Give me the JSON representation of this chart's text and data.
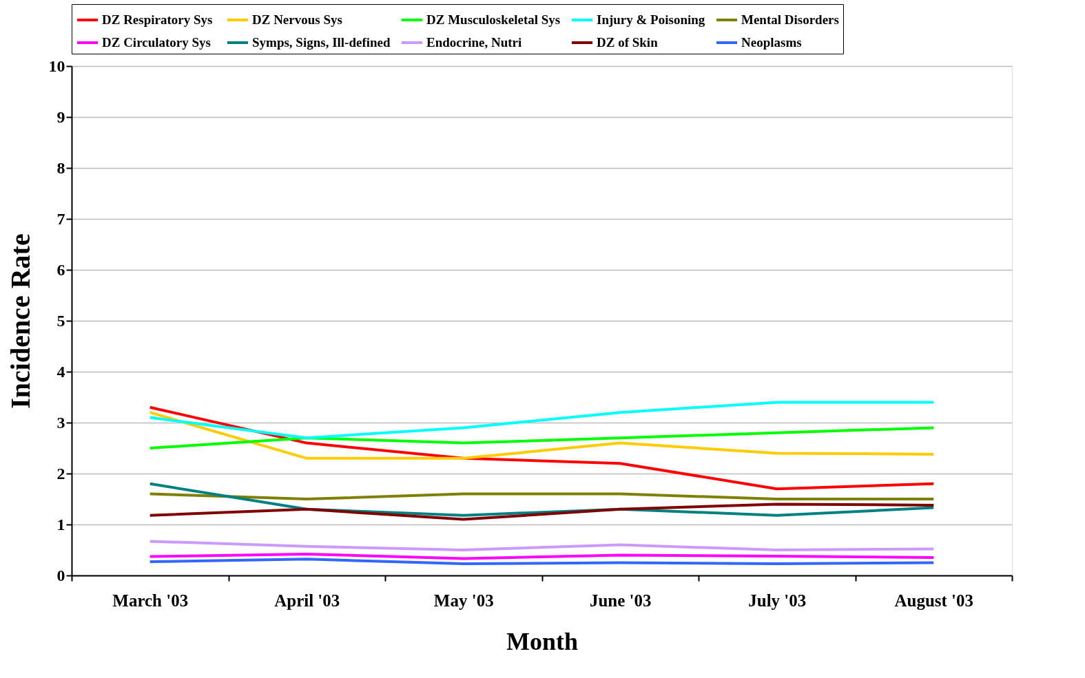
{
  "chart_data": {
    "type": "line",
    "xlabel": "Month",
    "ylabel": "Incidence Rate",
    "categories": [
      "March '03",
      "April '03",
      "May '03",
      "June '03",
      "July '03",
      "August '03"
    ],
    "ylim": [
      0,
      10
    ],
    "yticks": [
      0,
      1,
      2,
      3,
      4,
      5,
      6,
      7,
      8,
      9,
      10
    ],
    "grid": "y",
    "legend": "top",
    "marker": "none",
    "line_style": "solid",
    "series": [
      {
        "name": "DZ Respiratory  Sys",
        "color": "#ff0000",
        "values": [
          3.3,
          2.6,
          2.3,
          2.2,
          1.7,
          1.8
        ]
      },
      {
        "name": "DZ Nervous Sys",
        "color": "#ffcc00",
        "values": [
          3.2,
          2.3,
          2.3,
          2.6,
          2.4,
          2.38
        ]
      },
      {
        "name": "DZ Musculoskeletal Sys",
        "color": "#00ff00",
        "values": [
          2.5,
          2.7,
          2.6,
          2.7,
          2.8,
          2.9
        ]
      },
      {
        "name": "Injury & Poisoning",
        "color": "#00ffff",
        "values": [
          3.1,
          2.7,
          2.9,
          3.2,
          3.4,
          3.4
        ]
      },
      {
        "name": "Mental Disorders",
        "color": "#808000",
        "values": [
          1.6,
          1.5,
          1.6,
          1.6,
          1.5,
          1.5
        ]
      },
      {
        "name": "DZ Circulatory Sys",
        "color": "#ff00ff",
        "values": [
          0.37,
          0.42,
          0.33,
          0.4,
          0.38,
          0.35
        ]
      },
      {
        "name": "Symps, Signs, Ill-defined",
        "color": "#008080",
        "values": [
          1.8,
          1.3,
          1.18,
          1.3,
          1.18,
          1.33
        ]
      },
      {
        "name": "Endocrine, Nutri",
        "color": "#cc99ff",
        "values": [
          0.67,
          0.57,
          0.5,
          0.6,
          0.5,
          0.52
        ]
      },
      {
        "name": "DZ of Skin",
        "color": "#800000",
        "values": [
          1.18,
          1.3,
          1.1,
          1.3,
          1.4,
          1.38
        ]
      },
      {
        "name": "Neoplasms",
        "color": "#3366ff",
        "values": [
          0.27,
          0.32,
          0.23,
          0.25,
          0.23,
          0.25
        ]
      }
    ]
  }
}
